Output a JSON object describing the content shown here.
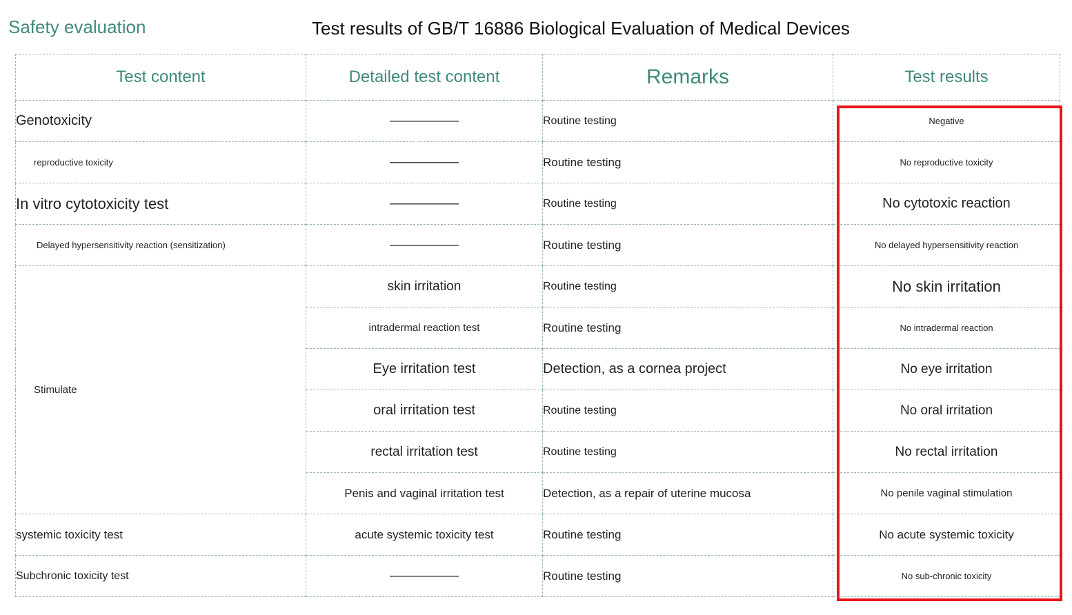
{
  "header": {
    "section_title": "Safety evaluation",
    "doc_title": "Test results of GB/T 16886 Biological Evaluation of Medical Devices"
  },
  "table": {
    "columns": [
      "Test content",
      "Detailed test content",
      "Remarks",
      "Test results"
    ],
    "rows": [
      {
        "content": "Genotoxicity",
        "detail": "—————",
        "remark": "Routine testing",
        "result": "Negative"
      },
      {
        "content": "reproductive toxicity",
        "detail": "—————",
        "remark": "Routine testing",
        "result": "No reproductive toxicity"
      },
      {
        "content": "In vitro cytotoxicity test",
        "detail": "—————",
        "remark": "Routine testing",
        "result": "No cytotoxic reaction"
      },
      {
        "content": "Delayed hypersensitivity reaction (sensitization)",
        "detail": "—————",
        "remark": "Routine testing",
        "result": "No delayed hypersensitivity reaction"
      },
      {
        "content": "Stimulate",
        "detail": "skin irritation",
        "remark": "Routine testing",
        "result": "No skin irritation"
      },
      {
        "content": "",
        "detail": "intradermal reaction test",
        "remark": "Routine testing",
        "result": "No intradermal reaction"
      },
      {
        "content": "",
        "detail": "Eye irritation test",
        "remark": "Detection, as a cornea project",
        "result": "No eye irritation"
      },
      {
        "content": "",
        "detail": "oral irritation test",
        "remark": "Routine testing",
        "result": "No oral irritation"
      },
      {
        "content": "",
        "detail": "rectal irritation test",
        "remark": "Routine testing",
        "result": "No rectal irritation"
      },
      {
        "content": "",
        "detail": "Penis and vaginal irritation test",
        "remark": "Detection, as a repair of uterine mucosa",
        "result": "No penile vaginal stimulation"
      },
      {
        "content": "systemic toxicity test",
        "detail": "acute systemic toxicity test",
        "remark": "Routine testing",
        "result": "No acute systemic toxicity"
      },
      {
        "content": "Subchronic toxicity test",
        "detail": "—————",
        "remark": "Routine testing",
        "result": "No sub-chronic toxicity"
      }
    ]
  },
  "colors": {
    "accent": "#3f8a7a",
    "grid": "#9bb6af",
    "highlight": "#e8161b"
  }
}
